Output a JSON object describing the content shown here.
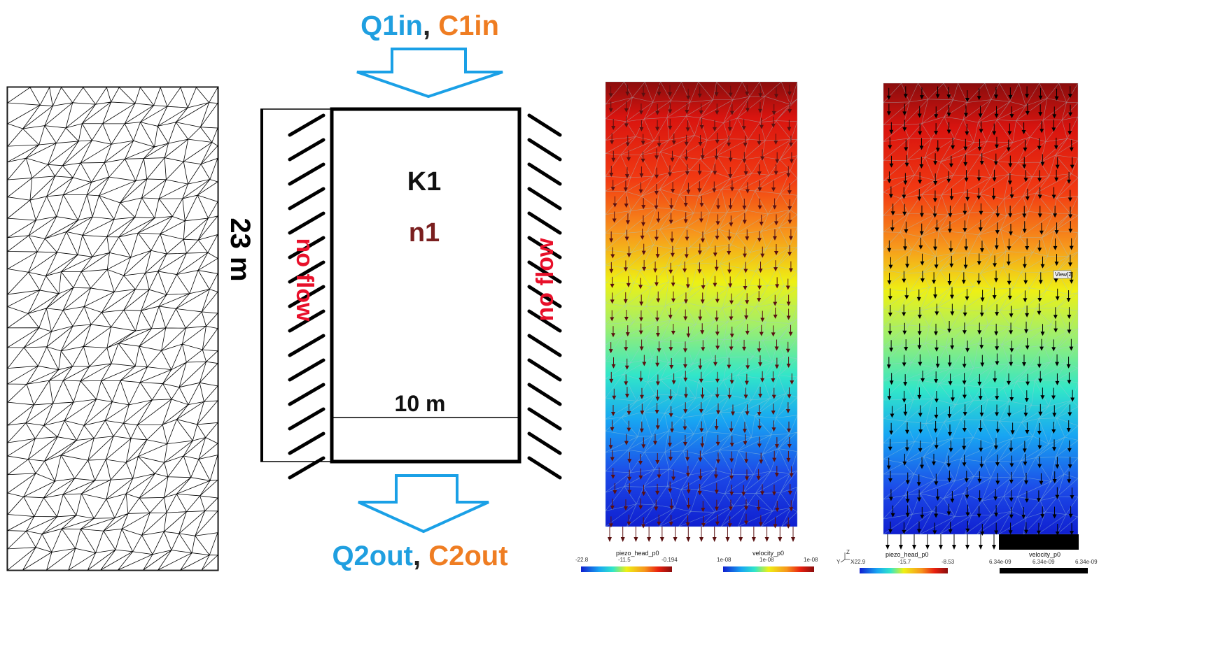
{
  "diagram": {
    "inflow_q": "Q1in",
    "inflow_sep": ", ",
    "inflow_c": "C1in",
    "outflow_q": "Q2out",
    "outflow_sep": ", ",
    "outflow_c": "C2out",
    "permeability": "K1",
    "porosity": "n1",
    "height": "23 m",
    "width": "10 m",
    "left_boundary": "no flow",
    "right_boundary": "no flow"
  },
  "colors": {
    "q_blue": "#1f9fe0",
    "c_orange": "#ef7d22",
    "arrow_blue": "#1aa0e6",
    "boundary_red": "#e8102a",
    "porosity_darkred": "#7a1f1f"
  },
  "plot1": {
    "legend_left": {
      "title": "piezo_head_p0",
      "ticks": [
        "-22.8",
        "-11.5",
        "-0.194"
      ]
    },
    "legend_right": {
      "title": "velocity_p0",
      "ticks": [
        "1e-08",
        "1e-08",
        "1e-08"
      ]
    }
  },
  "plot2": {
    "view_label": "View[2]",
    "axes": {
      "z": "Z",
      "y": "Y",
      "x": "X"
    },
    "legend_left": {
      "title": "piezo_head_p0",
      "ticks": [
        "-22.9",
        "-15.7",
        "-8.53"
      ]
    },
    "legend_right": {
      "title": "velocity_p0",
      "ticks": [
        "6.34e-09",
        "6.34e-09",
        "6.34e-09"
      ]
    }
  }
}
